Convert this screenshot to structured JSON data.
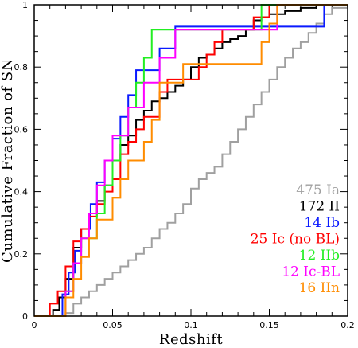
{
  "chart_data": {
    "type": "line",
    "xlabel": "Redshift",
    "ylabel": "Cumulative Fraction of SN",
    "xlim": [
      0,
      0.2
    ],
    "ylim": [
      0,
      1
    ],
    "x_ticks": [
      0,
      0.05,
      0.1,
      0.15,
      0.2
    ],
    "x_tick_labels": [
      "0",
      "0.05",
      "0.1",
      "0.15",
      "0.2"
    ],
    "y_ticks": [
      0,
      0.2,
      0.4,
      0.6,
      0.8,
      1
    ],
    "y_tick_labels": [
      "0",
      "0.2",
      "0.4",
      "0.6",
      "0.8",
      "1"
    ],
    "legend_position": "bottom-right",
    "series": [
      {
        "name": "475 Ia",
        "color": "#a0a0a0",
        "x": [
          0,
          0.02,
          0.025,
          0.03,
          0.035,
          0.04,
          0.045,
          0.05,
          0.055,
          0.06,
          0.065,
          0.07,
          0.075,
          0.08,
          0.085,
          0.09,
          0.095,
          0.1,
          0.105,
          0.11,
          0.115,
          0.12,
          0.125,
          0.13,
          0.135,
          0.14,
          0.145,
          0.15,
          0.155,
          0.16,
          0.165,
          0.17,
          0.175,
          0.18,
          0.185,
          0.19,
          0.2
        ],
        "y": [
          0,
          0.01,
          0.04,
          0.06,
          0.08,
          0.1,
          0.12,
          0.14,
          0.16,
          0.18,
          0.2,
          0.22,
          0.25,
          0.28,
          0.3,
          0.33,
          0.36,
          0.41,
          0.44,
          0.46,
          0.48,
          0.52,
          0.56,
          0.6,
          0.64,
          0.68,
          0.72,
          0.76,
          0.8,
          0.83,
          0.86,
          0.88,
          0.91,
          0.94,
          0.97,
          0.99,
          1.0
        ]
      },
      {
        "name": "172 II",
        "color": "#000000",
        "x": [
          0,
          0.012,
          0.016,
          0.02,
          0.025,
          0.03,
          0.035,
          0.04,
          0.045,
          0.05,
          0.055,
          0.06,
          0.065,
          0.07,
          0.075,
          0.08,
          0.085,
          0.09,
          0.095,
          0.1,
          0.105,
          0.11,
          0.115,
          0.12,
          0.125,
          0.13,
          0.135,
          0.14,
          0.145,
          0.15,
          0.155,
          0.16,
          0.165,
          0.17,
          0.175,
          0.18,
          0.19,
          0.2
        ],
        "y": [
          0,
          0.02,
          0.06,
          0.12,
          0.22,
          0.28,
          0.33,
          0.37,
          0.42,
          0.5,
          0.55,
          0.58,
          0.63,
          0.66,
          0.69,
          0.7,
          0.72,
          0.74,
          0.76,
          0.8,
          0.83,
          0.84,
          0.86,
          0.88,
          0.89,
          0.9,
          0.92,
          0.95,
          0.96,
          0.97,
          0.97,
          0.98,
          0.98,
          0.99,
          0.99,
          1.0,
          1.0,
          1.0
        ]
      },
      {
        "name": "14 Ib",
        "color": "#0a1aff",
        "x": [
          0,
          0.018,
          0.022,
          0.026,
          0.03,
          0.036,
          0.04,
          0.045,
          0.05,
          0.055,
          0.06,
          0.065,
          0.07,
          0.08,
          0.085,
          0.09,
          0.18,
          0.185,
          0.2
        ],
        "y": [
          0,
          0.07,
          0.14,
          0.21,
          0.28,
          0.36,
          0.43,
          0.5,
          0.57,
          0.64,
          0.71,
          0.79,
          0.79,
          0.86,
          0.86,
          0.93,
          0.93,
          1.0,
          1.0
        ]
      },
      {
        "name": "25 Ic (no BL)",
        "color": "#ff0000",
        "x": [
          0,
          0.01,
          0.015,
          0.02,
          0.025,
          0.03,
          0.035,
          0.04,
          0.045,
          0.05,
          0.055,
          0.06,
          0.065,
          0.07,
          0.075,
          0.08,
          0.085,
          0.1,
          0.105,
          0.11,
          0.115,
          0.12,
          0.125,
          0.14,
          0.145,
          0.15,
          0.2
        ],
        "y": [
          0,
          0.04,
          0.08,
          0.16,
          0.24,
          0.28,
          0.32,
          0.36,
          0.4,
          0.44,
          0.52,
          0.56,
          0.6,
          0.64,
          0.64,
          0.72,
          0.76,
          0.76,
          0.8,
          0.84,
          0.88,
          0.92,
          0.92,
          0.96,
          0.96,
          1.0,
          1.0
        ]
      },
      {
        "name": "12 IIb",
        "color": "#22ee22",
        "x": [
          0,
          0.02,
          0.025,
          0.03,
          0.04,
          0.045,
          0.05,
          0.055,
          0.06,
          0.065,
          0.07,
          0.075,
          0.08,
          0.085,
          0.14,
          0.145,
          0.2
        ],
        "y": [
          0,
          0.08,
          0.17,
          0.25,
          0.33,
          0.42,
          0.5,
          0.58,
          0.67,
          0.75,
          0.83,
          0.92,
          0.92,
          0.92,
          0.92,
          1.0,
          1.0
        ]
      },
      {
        "name": "12 Ic-BL",
        "color": "#ff00ff",
        "x": [
          0,
          0.02,
          0.025,
          0.03,
          0.035,
          0.04,
          0.045,
          0.05,
          0.06,
          0.07,
          0.075,
          0.08,
          0.09,
          0.15,
          0.155,
          0.2
        ],
        "y": [
          0,
          0.08,
          0.17,
          0.25,
          0.33,
          0.42,
          0.5,
          0.58,
          0.67,
          0.75,
          0.75,
          0.83,
          0.92,
          0.92,
          1.0,
          1.0
        ]
      },
      {
        "name": "16 IIn",
        "color": "#ff8c00",
        "x": [
          0,
          0.02,
          0.025,
          0.03,
          0.035,
          0.04,
          0.05,
          0.055,
          0.06,
          0.07,
          0.075,
          0.08,
          0.095,
          0.135,
          0.145,
          0.15,
          0.155,
          0.2
        ],
        "y": [
          0,
          0.06,
          0.12,
          0.19,
          0.25,
          0.31,
          0.38,
          0.44,
          0.5,
          0.56,
          0.63,
          0.75,
          0.81,
          0.81,
          0.88,
          0.94,
          1.0,
          1.0
        ]
      }
    ]
  }
}
